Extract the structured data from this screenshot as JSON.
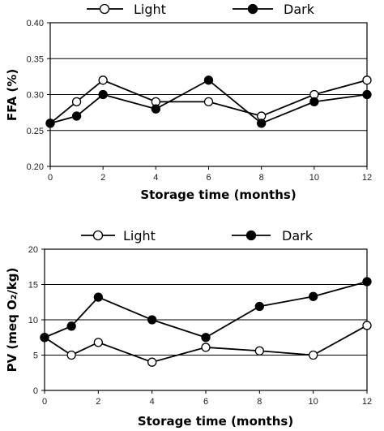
{
  "chart_data": [
    {
      "type": "line",
      "xlabel": "Storage time (months)",
      "ylabel": "FFA (%)",
      "xlim": [
        0,
        12
      ],
      "ylim": [
        0.2,
        0.4
      ],
      "xticks": [
        "0",
        "2",
        "4",
        "6",
        "8",
        "10",
        "12"
      ],
      "yticks": [
        "0.20",
        "0.25",
        "0.30",
        "0.35",
        "0.40"
      ],
      "grid": "horizontal",
      "legend": "top",
      "series": [
        {
          "name": "Light",
          "marker": "open-circle",
          "x": [
            0,
            1,
            2,
            4,
            6,
            8,
            10,
            12
          ],
          "values": [
            0.26,
            0.29,
            0.32,
            0.29,
            0.29,
            0.27,
            0.3,
            0.32
          ]
        },
        {
          "name": "Dark",
          "marker": "filled-circle",
          "x": [
            0,
            1,
            2,
            4,
            6,
            8,
            10,
            12
          ],
          "values": [
            0.26,
            0.27,
            0.3,
            0.28,
            0.32,
            0.26,
            0.29,
            0.3
          ]
        }
      ]
    },
    {
      "type": "line",
      "xlabel": "Storage time (months)",
      "ylabel": "PV (meq O₂/kg)",
      "xlim": [
        0,
        12
      ],
      "ylim": [
        0,
        20
      ],
      "xticks": [
        "0",
        "2",
        "4",
        "6",
        "8",
        "10",
        "12"
      ],
      "yticks": [
        "0",
        "5",
        "10",
        "15",
        "20"
      ],
      "grid": "horizontal",
      "legend": "top",
      "series": [
        {
          "name": "Light",
          "marker": "open-circle",
          "x": [
            0,
            1,
            2,
            4,
            6,
            8,
            10,
            12
          ],
          "values": [
            7.5,
            5.0,
            6.8,
            4.0,
            6.1,
            5.6,
            5.0,
            9.2
          ]
        },
        {
          "name": "Dark",
          "marker": "filled-circle",
          "x": [
            0,
            1,
            2,
            4,
            6,
            8,
            10,
            12
          ],
          "values": [
            7.5,
            9.1,
            13.2,
            10.0,
            7.5,
            11.9,
            13.3,
            15.4
          ]
        }
      ]
    }
  ]
}
